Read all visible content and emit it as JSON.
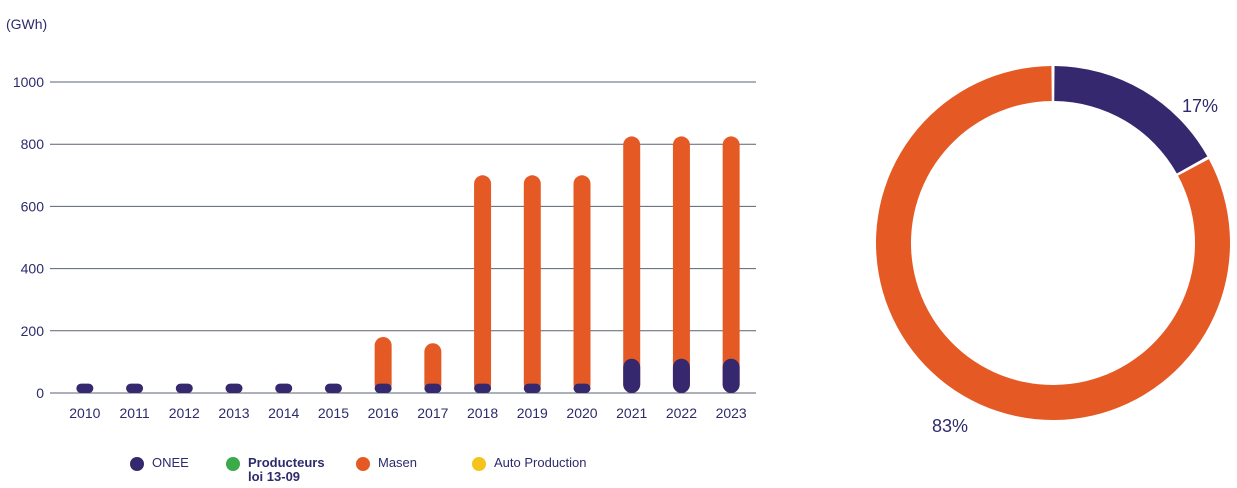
{
  "chart_data": [
    {
      "type": "bar",
      "stacked": true,
      "unit_label": "(GWh)",
      "categories": [
        "2010",
        "2011",
        "2012",
        "2013",
        "2014",
        "2015",
        "2016",
        "2017",
        "2018",
        "2019",
        "2020",
        "2021",
        "2022",
        "2023"
      ],
      "series": [
        {
          "name": "ONEE",
          "color": "#35286e",
          "values": [
            5,
            5,
            5,
            5,
            5,
            5,
            5,
            5,
            10,
            10,
            10,
            110,
            110,
            110
          ]
        },
        {
          "name": "Producteurs loi 13-09",
          "color": "#3aaa4a",
          "values": [
            0,
            0,
            0,
            0,
            0,
            0,
            0,
            0,
            0,
            0,
            0,
            0,
            0,
            0
          ]
        },
        {
          "name": "Masen",
          "color": "#e55a24",
          "values": [
            0,
            0,
            0,
            0,
            0,
            0,
            175,
            155,
            690,
            690,
            690,
            715,
            715,
            715
          ]
        },
        {
          "name": "Auto Production",
          "color": "#f6c31c",
          "values": [
            0,
            0,
            0,
            0,
            0,
            0,
            0,
            0,
            0,
            0,
            0,
            0,
            0,
            0
          ]
        }
      ],
      "yticks": [
        0,
        200,
        400,
        600,
        800,
        1000
      ],
      "ylim": [
        0,
        1000
      ],
      "grid": true,
      "legend": "bottom"
    },
    {
      "type": "pie",
      "donut": true,
      "slices": [
        {
          "name": "ONEE",
          "value": 17,
          "label": "17%",
          "color": "#35286e"
        },
        {
          "name": "Masen",
          "value": 83,
          "label": "83%",
          "color": "#e55a24"
        }
      ]
    }
  ]
}
